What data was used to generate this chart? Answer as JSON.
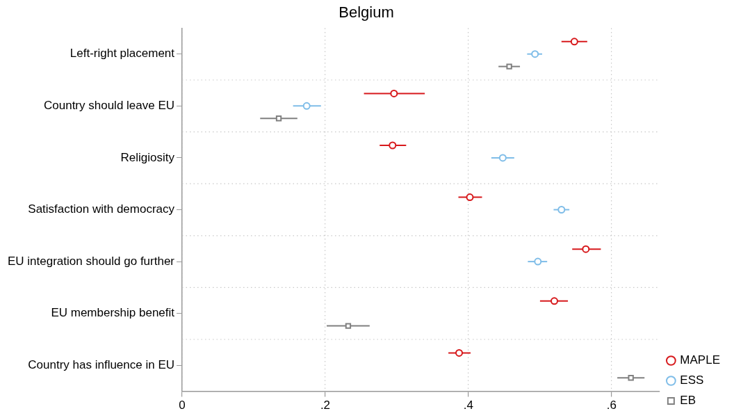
{
  "chart_data": {
    "type": "scatter",
    "orientation": "horizontal",
    "title": "Belgium",
    "categories": [
      "Left-right placement",
      "Country should leave EU",
      "Religiosity",
      "Satisfaction with democracy",
      "EU integration should go further",
      "EU membership benefit",
      "Country has influence in EU"
    ],
    "series": [
      {
        "name": "MAPLE",
        "color": "#d7191c",
        "marker": "circle",
        "values": [
          0.548,
          0.296,
          0.294,
          0.402,
          0.564,
          0.52,
          0.387
        ],
        "errors": [
          [
            0.53,
            0.566
          ],
          [
            0.254,
            0.339
          ],
          [
            0.276,
            0.313
          ],
          [
            0.386,
            0.419
          ],
          [
            0.545,
            0.585
          ],
          [
            0.5,
            0.539
          ],
          [
            0.372,
            0.403
          ]
        ]
      },
      {
        "name": "ESS",
        "color": "#7fbde8",
        "marker": "circle",
        "values": [
          0.493,
          0.174,
          0.448,
          0.53,
          0.497,
          null,
          null
        ],
        "errors": [
          [
            0.482,
            0.503
          ],
          [
            0.155,
            0.194
          ],
          [
            0.432,
            0.464
          ],
          [
            0.519,
            0.541
          ],
          [
            0.483,
            0.51
          ],
          null,
          null
        ]
      },
      {
        "name": "EB",
        "color": "#808080",
        "marker": "square",
        "values": [
          0.457,
          0.135,
          null,
          null,
          null,
          0.232,
          0.627
        ],
        "errors": [
          [
            0.442,
            0.472
          ],
          [
            0.109,
            0.161
          ],
          null,
          null,
          null,
          [
            0.202,
            0.262
          ],
          [
            0.608,
            0.646
          ]
        ]
      }
    ],
    "xlim": [
      0,
      0.667
    ],
    "xticks": [
      0,
      {
        "value": 0.2,
        "label": ".2"
      },
      {
        "value": 0.4,
        "label": ".4"
      },
      {
        "value": 0.6,
        "label": ".6"
      }
    ],
    "grid": true,
    "legend": "bottom right"
  }
}
